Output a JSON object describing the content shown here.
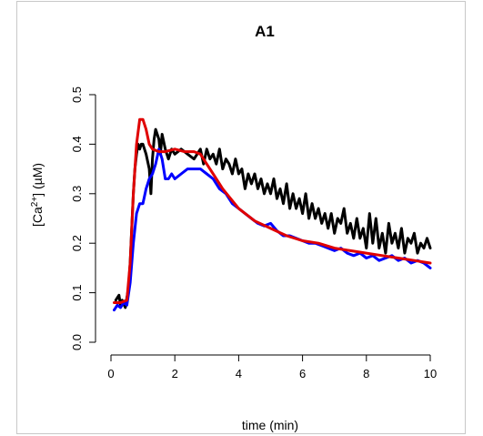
{
  "chart_data": {
    "type": "line",
    "title": "A1",
    "xlabel": "time (min)",
    "ylabel": {
      "prefix": "[Ca",
      "sup": "2+",
      "suffix": "] (µM)"
    },
    "xlim": [
      0,
      10
    ],
    "ylim": [
      0,
      0.5
    ],
    "xticks": [
      0,
      2,
      4,
      6,
      8,
      10
    ],
    "yticks": [
      0.0,
      0.1,
      0.2,
      0.3,
      0.4,
      0.5
    ],
    "xtick_labels": [
      "0",
      "2",
      "4",
      "6",
      "8",
      "10"
    ],
    "ytick_labels": [
      "0.0",
      "0.1",
      "0.2",
      "0.3",
      "0.4",
      "0.5"
    ],
    "grid": false,
    "legend": "none",
    "series": [
      {
        "color": "#000000",
        "x": [
          0.15,
          0.25,
          0.3,
          0.35,
          0.45,
          0.5,
          0.55,
          0.6,
          0.65,
          0.7,
          0.75,
          0.8,
          0.85,
          0.9,
          0.95,
          1.0,
          1.1,
          1.2,
          1.25,
          1.3,
          1.35,
          1.4,
          1.5,
          1.55,
          1.6,
          1.7,
          1.8,
          1.9,
          2.0,
          2.2,
          2.4,
          2.6,
          2.8,
          2.9,
          3.0,
          3.1,
          3.2,
          3.3,
          3.4,
          3.5,
          3.6,
          3.7,
          3.8,
          3.9,
          4.0,
          4.1,
          4.2,
          4.3,
          4.4,
          4.5,
          4.6,
          4.7,
          4.8,
          4.9,
          5.0,
          5.1,
          5.2,
          5.3,
          5.4,
          5.5,
          5.6,
          5.7,
          5.8,
          5.9,
          6.0,
          6.1,
          6.2,
          6.3,
          6.4,
          6.5,
          6.6,
          6.7,
          6.8,
          6.9,
          7.0,
          7.1,
          7.2,
          7.3,
          7.4,
          7.5,
          7.6,
          7.7,
          7.8,
          7.9,
          8.0,
          8.1,
          8.2,
          8.3,
          8.4,
          8.5,
          8.6,
          8.7,
          8.8,
          8.9,
          9.0,
          9.1,
          9.2,
          9.3,
          9.4,
          9.5,
          9.6,
          9.7,
          9.8,
          9.9,
          10.0
        ],
        "y": [
          0.085,
          0.095,
          0.075,
          0.085,
          0.07,
          0.09,
          0.11,
          0.16,
          0.23,
          0.3,
          0.35,
          0.38,
          0.4,
          0.39,
          0.4,
          0.4,
          0.38,
          0.35,
          0.3,
          0.37,
          0.41,
          0.43,
          0.41,
          0.38,
          0.42,
          0.39,
          0.37,
          0.39,
          0.38,
          0.39,
          0.38,
          0.37,
          0.39,
          0.36,
          0.39,
          0.37,
          0.38,
          0.36,
          0.39,
          0.35,
          0.37,
          0.36,
          0.34,
          0.37,
          0.34,
          0.35,
          0.31,
          0.34,
          0.32,
          0.34,
          0.31,
          0.33,
          0.3,
          0.32,
          0.3,
          0.33,
          0.29,
          0.31,
          0.28,
          0.32,
          0.27,
          0.3,
          0.27,
          0.29,
          0.26,
          0.3,
          0.25,
          0.28,
          0.25,
          0.27,
          0.24,
          0.26,
          0.23,
          0.26,
          0.22,
          0.25,
          0.24,
          0.27,
          0.22,
          0.24,
          0.21,
          0.25,
          0.21,
          0.23,
          0.19,
          0.26,
          0.2,
          0.25,
          0.19,
          0.22,
          0.18,
          0.24,
          0.2,
          0.22,
          0.19,
          0.23,
          0.18,
          0.21,
          0.2,
          0.22,
          0.18,
          0.2,
          0.19,
          0.21,
          0.19
        ]
      },
      {
        "color": "#0000ff",
        "x": [
          0.1,
          0.2,
          0.3,
          0.4,
          0.5,
          0.6,
          0.7,
          0.8,
          0.9,
          1.0,
          1.1,
          1.2,
          1.3,
          1.4,
          1.5,
          1.6,
          1.7,
          1.8,
          1.9,
          2.0,
          2.2,
          2.4,
          2.6,
          2.8,
          3.0,
          3.2,
          3.4,
          3.6,
          3.8,
          4.0,
          4.2,
          4.4,
          4.6,
          4.8,
          5.0,
          5.2,
          5.4,
          5.6,
          5.8,
          6.0,
          6.2,
          6.4,
          6.6,
          6.8,
          7.0,
          7.2,
          7.4,
          7.6,
          7.8,
          8.0,
          8.2,
          8.4,
          8.6,
          8.8,
          9.0,
          9.2,
          9.4,
          9.6,
          9.8,
          10.0
        ],
        "y": [
          0.065,
          0.075,
          0.07,
          0.08,
          0.075,
          0.12,
          0.2,
          0.26,
          0.28,
          0.28,
          0.31,
          0.33,
          0.34,
          0.36,
          0.39,
          0.37,
          0.33,
          0.33,
          0.34,
          0.33,
          0.34,
          0.35,
          0.35,
          0.35,
          0.34,
          0.33,
          0.31,
          0.3,
          0.28,
          0.27,
          0.26,
          0.25,
          0.24,
          0.235,
          0.24,
          0.225,
          0.215,
          0.215,
          0.21,
          0.205,
          0.2,
          0.2,
          0.195,
          0.19,
          0.185,
          0.19,
          0.18,
          0.175,
          0.18,
          0.17,
          0.175,
          0.165,
          0.17,
          0.175,
          0.165,
          0.17,
          0.16,
          0.165,
          0.16,
          0.15
        ]
      },
      {
        "color": "#e00000",
        "x": [
          0.1,
          0.3,
          0.5,
          0.6,
          0.7,
          0.8,
          0.9,
          1.0,
          1.1,
          1.2,
          1.3,
          1.5,
          1.7,
          2.0,
          2.3,
          2.6,
          2.8,
          3.0,
          3.2,
          3.5,
          4.0,
          4.5,
          5.0,
          5.5,
          6.0,
          6.5,
          7.0,
          7.5,
          8.0,
          8.5,
          9.0,
          9.5,
          10.0
        ],
        "y": [
          0.08,
          0.08,
          0.085,
          0.16,
          0.3,
          0.4,
          0.45,
          0.45,
          0.43,
          0.4,
          0.39,
          0.385,
          0.385,
          0.39,
          0.385,
          0.385,
          0.38,
          0.36,
          0.34,
          0.31,
          0.27,
          0.245,
          0.23,
          0.215,
          0.205,
          0.2,
          0.19,
          0.185,
          0.18,
          0.175,
          0.17,
          0.165,
          0.16
        ]
      }
    ]
  }
}
